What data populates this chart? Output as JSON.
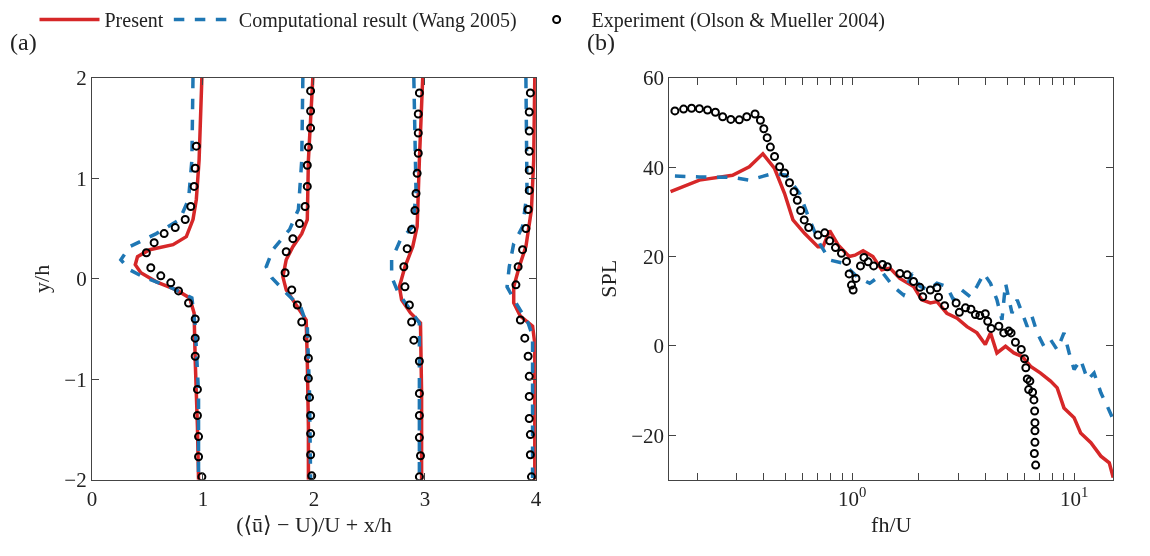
{
  "chart_data": [
    {
      "type": "line",
      "title": "(a)",
      "xlabel": "(⟨ū⟩ − U)/U + x/h",
      "ylabel": "y/h",
      "xlim": [
        0,
        4
      ],
      "ylim": [
        -2,
        2
      ],
      "xticks": [
        0,
        1,
        2,
        3,
        4
      ],
      "yticks": [
        -2,
        -1,
        0,
        1,
        2
      ],
      "grid": false,
      "legend": "top",
      "series": [
        {
          "name": "Present",
          "type": "line",
          "line_style": "solid",
          "color": "#d62728",
          "x": [
            0.99,
            0.965,
            0.94,
            0.91,
            0.85,
            0.73,
            0.52,
            0.41,
            0.39,
            0.44,
            0.58,
            0.76,
            0.88,
            0.92,
            0.93,
            0.95,
            0.96,
            null,
            1.99,
            1.95,
            1.94,
            1.89,
            1.81,
            1.75,
            1.72,
            1.75,
            1.84,
            1.93,
            1.94,
            1.95,
            1.95,
            null,
            2.98,
            2.95,
            2.93,
            2.89,
            2.82,
            2.77,
            2.79,
            2.87,
            2.96,
            2.97,
            2.97,
            null,
            3.99,
            3.98,
            3.96,
            3.91,
            3.85,
            3.8,
            3.8,
            3.86,
            3.97,
            3.99,
            3.99,
            3.99
          ],
          "values": [
            2,
            1.18,
            0.79,
            0.59,
            0.42,
            0.34,
            0.29,
            0.22,
            0.14,
            0.06,
            -0.03,
            -0.11,
            -0.19,
            -0.34,
            -0.81,
            -1.47,
            -2,
            null,
            2,
            1.18,
            0.59,
            0.45,
            0.32,
            0.19,
            0.02,
            -0.11,
            -0.26,
            -0.41,
            -0.81,
            -1.47,
            -2,
            null,
            2,
            1.18,
            0.52,
            0.32,
            0.12,
            -0.08,
            -0.21,
            -0.34,
            -0.44,
            -1.14,
            -2,
            null,
            2,
            1.18,
            0.69,
            0.32,
            0.12,
            -0.08,
            -0.24,
            -0.37,
            -0.47,
            -0.64,
            -1.47,
            -2
          ]
        },
        {
          "name": "Computational result (Wang 2005)",
          "type": "line",
          "line_style": "dashed",
          "color": "#1f77b4",
          "x": [
            0.91,
            0.9,
            0.87,
            0.79,
            0.58,
            0.34,
            0.26,
            0.34,
            0.46,
            0.7,
            0.9,
            0.93,
            0.96,
            0.96,
            null,
            1.9,
            1.89,
            1.86,
            1.78,
            1.63,
            1.57,
            1.62,
            1.75,
            1.88,
            1.94,
            1.96,
            1.97,
            null,
            2.9,
            2.92,
            2.89,
            2.78,
            2.7,
            2.7,
            2.76,
            2.85,
            2.95,
            2.95,
            null,
            3.91,
            3.92,
            3.88,
            3.8,
            3.76,
            3.74,
            3.82,
            3.93,
            3.97,
            3.97
          ],
          "values": [
            2,
            1.18,
            0.79,
            0.59,
            0.45,
            0.32,
            0.19,
            0.09,
            0.02,
            -0.08,
            -0.19,
            -0.47,
            -1.14,
            -2,
            null,
            2,
            1.18,
            0.69,
            0.49,
            0.29,
            0.12,
            0.01,
            -0.14,
            -0.28,
            -0.47,
            -1.14,
            -2,
            null,
            2,
            0.85,
            0.52,
            0.39,
            0.19,
            0.02,
            -0.14,
            -0.28,
            -0.44,
            -2,
            null,
            2,
            0.85,
            0.52,
            0.35,
            0.12,
            -0.08,
            -0.24,
            -0.44,
            -0.57,
            -2
          ]
        },
        {
          "name": "Experiment (Olson & Mueller 2004)",
          "type": "scatter",
          "marker": "circle",
          "color": "#000000",
          "x": [
            0.94,
            0.93,
            0.92,
            0.89,
            0.84,
            0.75,
            0.65,
            0.56,
            0.49,
            0.53,
            0.62,
            0.71,
            0.78,
            0.87,
            0.93,
            0.93,
            0.93,
            0.95,
            0.95,
            0.96,
            0.96,
            0.99,
            1.97,
            1.97,
            1.97,
            1.95,
            1.94,
            1.94,
            1.92,
            1.87,
            1.81,
            1.75,
            1.74,
            1.8,
            1.85,
            1.89,
            1.94,
            1.95,
            1.95,
            1.96,
            1.97,
            1.97,
            1.97,
            1.98,
            2.95,
            2.94,
            2.94,
            2.94,
            2.93,
            2.92,
            2.91,
            2.88,
            2.84,
            2.81,
            2.82,
            2.86,
            2.88,
            2.9,
            2.95,
            2.95,
            2.95,
            2.95,
            2.96,
            2.95,
            3.95,
            3.94,
            3.94,
            3.94,
            3.94,
            3.94,
            3.93,
            3.91,
            3.88,
            3.84,
            3.82,
            3.86,
            3.9,
            3.93,
            3.94,
            3.94,
            3.94,
            3.95,
            3.95,
            3.96
          ],
          "values": [
            1.32,
            1.1,
            0.92,
            0.72,
            0.59,
            0.51,
            0.45,
            0.36,
            0.26,
            0.11,
            0.03,
            -0.04,
            -0.12,
            -0.24,
            -0.4,
            -0.59,
            -0.77,
            -1.1,
            -1.36,
            -1.57,
            -1.77,
            -1.97,
            1.87,
            1.67,
            1.5,
            1.31,
            1.13,
            0.92,
            0.72,
            0.55,
            0.4,
            0.27,
            0.06,
            -0.11,
            -0.26,
            -0.43,
            -0.59,
            -0.79,
            -0.99,
            -1.18,
            -1.36,
            -1.54,
            -1.75,
            -1.96,
            1.85,
            1.64,
            1.45,
            1.25,
            1.05,
            0.85,
            0.68,
            0.49,
            0.3,
            0.12,
            -0.08,
            -0.26,
            -0.43,
            -0.61,
            -0.82,
            -1.14,
            -1.36,
            -1.58,
            -1.76,
            -1.97,
            1.85,
            1.66,
            1.47,
            1.27,
            1.08,
            0.88,
            0.69,
            0.5,
            0.29,
            0.12,
            -0.06,
            -0.41,
            -0.59,
            -0.77,
            -0.97,
            -1.17,
            -1.39,
            -1.55,
            -1.75,
            -1.97
          ]
        }
      ]
    },
    {
      "type": "line",
      "title": "(b)",
      "xlabel": "fh/U",
      "ylabel": "SPL",
      "log": "x",
      "xlim": [
        0.15,
        15
      ],
      "ylim": [
        -30,
        60
      ],
      "yticks": [
        -20,
        0,
        20,
        40,
        60
      ],
      "grid": false,
      "legend": false,
      "xticks": [
        {
          "value": 0.2,
          "label": null
        },
        {
          "value": 0.3,
          "label": null
        },
        {
          "value": 0.4,
          "label": null
        },
        {
          "value": 0.5,
          "label": null
        },
        {
          "value": 0.6,
          "label": null
        },
        {
          "value": 0.7,
          "label": null
        },
        {
          "value": 0.8,
          "label": null
        },
        {
          "value": 0.9,
          "label": null
        },
        {
          "value": 1,
          "label": "10$^{0}$"
        },
        {
          "value": 2,
          "label": null
        },
        {
          "value": 3,
          "label": null
        },
        {
          "value": 4,
          "label": null
        },
        {
          "value": 5,
          "label": null
        },
        {
          "value": 6,
          "label": null
        },
        {
          "value": 7,
          "label": null
        },
        {
          "value": 8,
          "label": null
        },
        {
          "value": 9,
          "label": null
        },
        {
          "value": 10,
          "label": "10$^{1}$"
        }
      ],
      "series": [
        {
          "type": "line",
          "line_style": "solid",
          "color": "#d62728",
          "x": [
            0.152,
            0.205,
            0.289,
            0.344,
            0.396,
            0.447,
            0.496,
            0.541,
            0.61,
            0.701,
            0.739,
            0.792,
            0.864,
            0.969,
            1.03,
            1.12,
            1.24,
            1.36,
            1.48,
            1.64,
            1.89,
            2.06,
            2.25,
            2.41,
            2.67,
            2.97,
            3.29,
            3.65,
            3.98,
            4.2,
            4.49,
            4.91,
            5.35,
            5.84,
            6.37,
            7.06,
            7.83,
            8.39,
            9.0,
            10.0,
            10.7,
            11.9,
            13.2,
            14.4,
            15.0
          ],
          "values": [
            34.5,
            37.1,
            38.2,
            40.1,
            43.0,
            39.7,
            34.1,
            28.2,
            25.2,
            22.2,
            22.2,
            25.8,
            22.6,
            20.0,
            20.3,
            21.3,
            20.0,
            17.0,
            17.4,
            15.1,
            13.3,
            10.3,
            9.6,
            9.9,
            7.3,
            6.2,
            4.3,
            2.9,
            0.3,
            2.9,
            -1.6,
            -0.1,
            -1.6,
            -2.4,
            -4.6,
            -6.1,
            -7.9,
            -9.4,
            -13.9,
            -16.1,
            -19.5,
            -21.7,
            -24.7,
            -26.2,
            -29.5
          ]
        },
        {
          "type": "line",
          "line_style": "dashed",
          "color": "#1f77b4",
          "x": [
            0.159,
            0.205,
            0.289,
            0.344,
            0.44,
            0.505,
            0.58,
            0.643,
            0.714,
            0.792,
            0.91,
            1.05,
            1.2,
            1.38,
            1.53,
            1.7,
            1.86,
            2.02,
            2.21,
            2.41,
            2.67,
            2.86,
            3.12,
            3.4,
            3.65,
            3.92,
            4.2,
            4.49,
            4.73,
            4.91,
            5.25,
            5.54,
            5.84,
            6.15,
            6.46,
            6.82,
            7.31,
            7.83,
            8.39,
            9.0,
            9.5,
            10.0,
            10.7,
            11.5,
            12.3,
            13.2,
            14.1,
            15.0
          ],
          "values": [
            38.0,
            37.8,
            37.7,
            37.1,
            38.6,
            38.2,
            34.1,
            28.2,
            22.9,
            19.2,
            18.5,
            15.5,
            14.0,
            16.2,
            13.3,
            11.4,
            16.2,
            13.3,
            12.5,
            14.0,
            13.3,
            10.3,
            12.5,
            11.0,
            13.3,
            16.2,
            14.0,
            10.3,
            5.8,
            14.0,
            7.3,
            10.3,
            7.3,
            4.3,
            6.6,
            2.9,
            -0.1,
            1.4,
            -0.9,
            2.9,
            -1.6,
            -5.3,
            -3.1,
            -7.6,
            -6.1,
            -10.5,
            -13.5,
            -16.5
          ]
        },
        {
          "type": "scatter",
          "marker": "circle",
          "color": "#000000",
          "x": [
            0.159,
            0.174,
            0.189,
            0.205,
            0.223,
            0.242,
            0.261,
            0.284,
            0.31,
            0.335,
            0.365,
            0.386,
            0.4,
            0.414,
            0.428,
            0.447,
            0.471,
            0.496,
            0.522,
            0.547,
            0.566,
            0.586,
            0.608,
            0.637,
            0.701,
            0.752,
            0.792,
            0.841,
            0.895,
            0.943,
            0.969,
            0.993,
            1.01,
            1.04,
            1.09,
            1.13,
            1.18,
            1.25,
            1.37,
            1.44,
            1.64,
            1.77,
            1.89,
            2.02,
            2.08,
            2.25,
            2.41,
            2.45,
            2.61,
            2.94,
            3.04,
            3.24,
            3.43,
            3.59,
            3.76,
            3.98,
            4.08,
            4.23,
            4.58,
            4.82,
            5.08,
            5.2,
            5.44,
            5.78,
            5.98,
            6.06,
            6.15,
            6.32,
            6.24,
            6.5,
            6.59,
            6.64,
            6.66,
            6.66,
            6.66,
            6.62,
            6.71
          ],
          "values": [
            52.6,
            53.0,
            53.2,
            53.1,
            52.8,
            52.3,
            51.3,
            50.7,
            50.6,
            51.3,
            51.9,
            50.5,
            48.6,
            46.6,
            44.5,
            42.4,
            40.1,
            38.7,
            36.5,
            34.5,
            32.6,
            30.3,
            28.2,
            26.5,
            24.8,
            25.3,
            23.5,
            22.0,
            20.7,
            18.9,
            16.1,
            13.6,
            12.5,
            15.1,
            17.9,
            19.8,
            18.8,
            17.9,
            18.2,
            17.7,
            16.2,
            15.9,
            14.4,
            13.1,
            11.0,
            12.5,
            13.0,
            10.9,
            9.0,
            9.6,
            7.5,
            8.5,
            8.2,
            7.0,
            6.8,
            7.2,
            5.5,
            3.9,
            4.4,
            2.9,
            3.3,
            2.9,
            0.8,
            -0.8,
            -2.9,
            -4.9,
            -7.4,
            -7.9,
            -9.8,
            -10.4,
            -12.1,
            -14.6,
            -17.2,
            -19.0,
            -21.6,
            -24.1,
            -26.7
          ]
        }
      ]
    }
  ]
}
